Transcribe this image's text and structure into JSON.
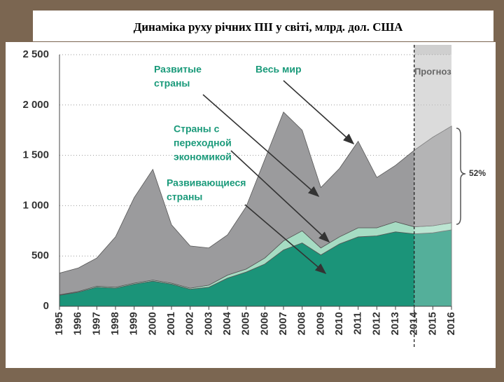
{
  "title": "Динаміка руху річних ПІІ у світі, млрд. дол. США",
  "chart_data": {
    "type": "stacked-area",
    "x": [
      1995,
      1996,
      1997,
      1998,
      1999,
      2000,
      2001,
      2002,
      2003,
      2004,
      2005,
      2006,
      2007,
      2008,
      2009,
      2010,
      2011,
      2012,
      2013,
      2014,
      2015,
      2016
    ],
    "xlim": [
      1995,
      2016
    ],
    "xticks": [
      1995,
      1996,
      1997,
      1998,
      1999,
      2000,
      2001,
      2002,
      2003,
      2004,
      2005,
      2006,
      2007,
      2008,
      2009,
      2010,
      2011,
      2012,
      2013,
      2014,
      2015,
      2016
    ],
    "ylim": [
      0,
      2500
    ],
    "yticks": [
      {
        "value": 0,
        "label": "0"
      },
      {
        "value": 500,
        "label": "500"
      },
      {
        "value": 1000,
        "label": "1 000"
      },
      {
        "value": 1500,
        "label": "1 500"
      },
      {
        "value": 2000,
        "label": "2 000"
      },
      {
        "value": 2500,
        "label": "2 500"
      }
    ],
    "grid": true,
    "forecast_start": 2014,
    "forecast_label": "Прогноз",
    "bracket_label": "52%",
    "series": [
      {
        "name": "Развивающиеся страны",
        "color": "#1b9479",
        "values": [
          110,
          140,
          190,
          180,
          220,
          250,
          220,
          170,
          190,
          280,
          340,
          420,
          560,
          630,
          510,
          620,
          690,
          700,
          740,
          720,
          730,
          760
        ]
      },
      {
        "name": "Страны с переходной экономикой",
        "color": "#a6dcc3",
        "values": [
          5,
          7,
          10,
          10,
          10,
          10,
          10,
          10,
          20,
          30,
          30,
          60,
          90,
          120,
          70,
          70,
          90,
          80,
          100,
          70,
          70,
          70
        ]
      },
      {
        "name": "Развитые страны",
        "color": "#9b9b9d",
        "values": [
          215,
          233,
          280,
          500,
          850,
          1100,
          580,
          420,
          370,
          400,
          620,
          980,
          1280,
          1000,
          600,
          680,
          860,
          500,
          560,
          760,
          880,
          960
        ]
      }
    ],
    "annotations": [
      {
        "lines": [
          "Весь мир"
        ]
      },
      {
        "lines": [
          "Развитые",
          "страны"
        ]
      },
      {
        "lines": [
          "Страны с",
          "переходной",
          "экономикой"
        ]
      },
      {
        "lines": [
          "Развивающиеся",
          "страны"
        ]
      }
    ]
  }
}
